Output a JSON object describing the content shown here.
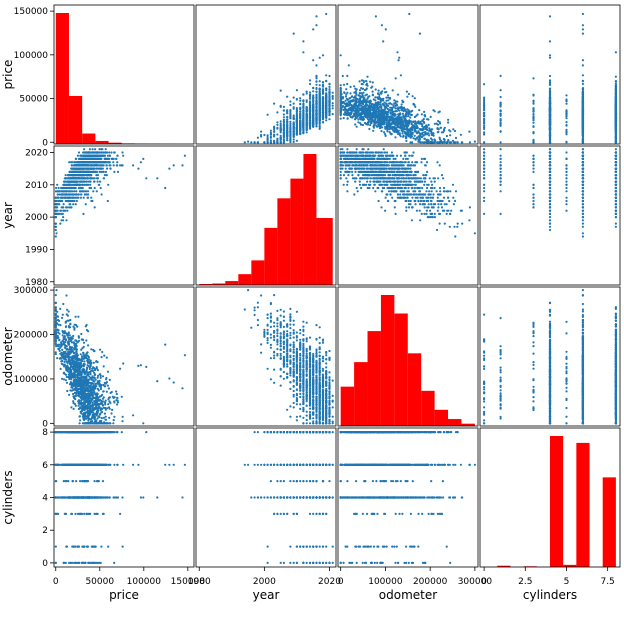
{
  "chart_data": {
    "type": "scatter",
    "title": "",
    "variables": [
      "price",
      "year",
      "odometer",
      "cylinders"
    ],
    "ranges": {
      "price": [
        -2000,
        157000
      ],
      "year": [
        1979,
        2022
      ],
      "odometer": [
        -6000,
        307000
      ],
      "cylinders": [
        -0.25,
        8.25
      ]
    },
    "ticks": {
      "price": [
        0,
        50000,
        100000,
        150000
      ],
      "year": [
        1980,
        1990,
        2000,
        2010,
        2020
      ],
      "odometer": [
        0,
        100000,
        200000,
        300000
      ],
      "cylinders": [
        0,
        2,
        4,
        6,
        8
      ]
    },
    "bottom_ticks": {
      "price": [
        0,
        50000,
        100000,
        150000
      ],
      "year": [
        1980,
        2000,
        2020
      ],
      "odometer": [
        0,
        100000,
        200000,
        300000
      ],
      "cylinders": [
        0.0,
        2.5,
        5.0,
        7.5
      ]
    },
    "histograms": {
      "price": {
        "edges": [
          0,
          15000,
          30000,
          45000,
          60000,
          75000,
          90000,
          105000,
          120000,
          135000,
          150000
        ],
        "counts": [
          150000,
          55000,
          12000,
          3500,
          1500,
          700,
          400,
          250,
          150,
          80
        ]
      },
      "year": {
        "edges": [
          1980,
          1984,
          1988,
          1992,
          1996,
          2000,
          2004,
          2008,
          2012,
          2016,
          2021
        ],
        "counts": [
          1000,
          1500,
          4000,
          11000,
          25000,
          58000,
          88000,
          108000,
          133000,
          68000
        ]
      },
      "odometer": {
        "edges": [
          0,
          30000,
          60000,
          90000,
          120000,
          150000,
          180000,
          210000,
          240000,
          270000,
          300000
        ],
        "counts": [
          85000,
          138000,
          205000,
          283000,
          243000,
          157000,
          76000,
          35000,
          15000,
          5000
        ]
      },
      "cylinders": {
        "edges": [
          0,
          0.8,
          1.6,
          2.4,
          3.2,
          4.0,
          4.8,
          5.6,
          6.4,
          7.2,
          8.0
        ],
        "counts": [
          0,
          1500,
          0,
          800,
          0,
          152000,
          2500,
          144000,
          0,
          104000
        ]
      }
    },
    "grid": false,
    "legend": "none",
    "colors": {
      "points": "#1f77b4",
      "bars": "#ff0000"
    }
  }
}
